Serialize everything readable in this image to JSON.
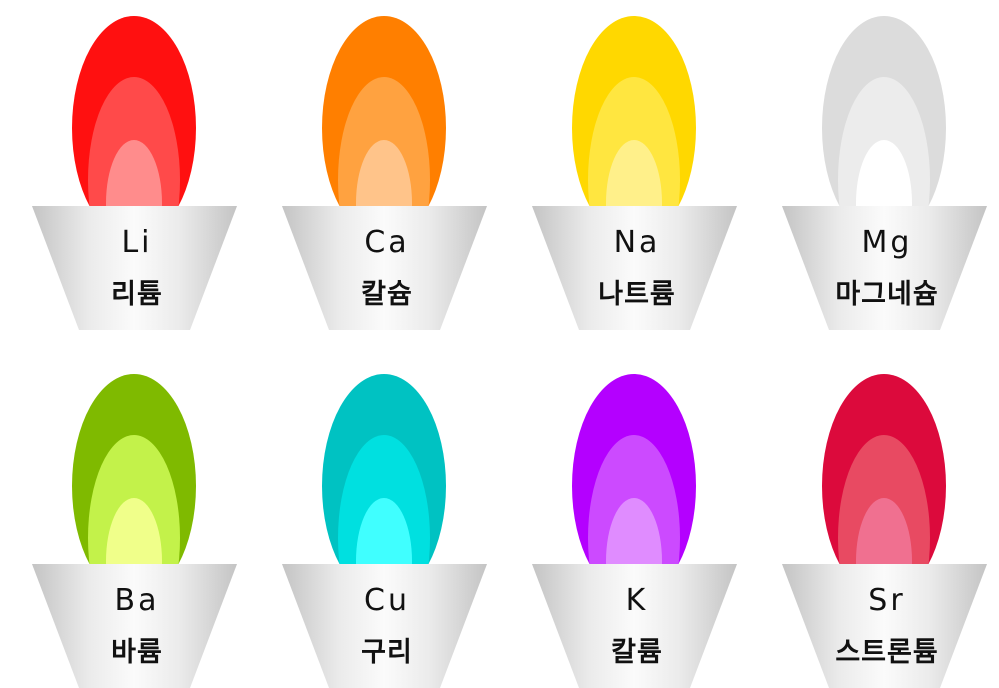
{
  "flames": [
    {
      "symbol": "Li",
      "name": "리튬",
      "colors": [
        "#ff1010",
        "#ff4a4a",
        "#ff8c8c"
      ]
    },
    {
      "symbol": "Ca",
      "name": "칼슘",
      "colors": [
        "#ff7f00",
        "#ffa240",
        "#ffc48a"
      ]
    },
    {
      "symbol": "Na",
      "name": "나트륨",
      "colors": [
        "#ffd800",
        "#ffe640",
        "#fff08a"
      ]
    },
    {
      "symbol": "Mg",
      "name": "마그네슘",
      "colors": [
        "#dcdcdc",
        "#ececec",
        "#ffffff"
      ]
    },
    {
      "symbol": "Ba",
      "name": "바륨",
      "colors": [
        "#7fba00",
        "#c3f24a",
        "#f0ff8a"
      ]
    },
    {
      "symbol": "Cu",
      "name": "구리",
      "colors": [
        "#00c2c2",
        "#00e0e0",
        "#40ffff"
      ]
    },
    {
      "symbol": "K",
      "name": "칼륨",
      "colors": [
        "#b400ff",
        "#cc4aff",
        "#e08cff"
      ]
    },
    {
      "symbol": "Sr",
      "name": "스트론튬",
      "colors": [
        "#dc0a3c",
        "#e84a62",
        "#f07090"
      ]
    }
  ]
}
